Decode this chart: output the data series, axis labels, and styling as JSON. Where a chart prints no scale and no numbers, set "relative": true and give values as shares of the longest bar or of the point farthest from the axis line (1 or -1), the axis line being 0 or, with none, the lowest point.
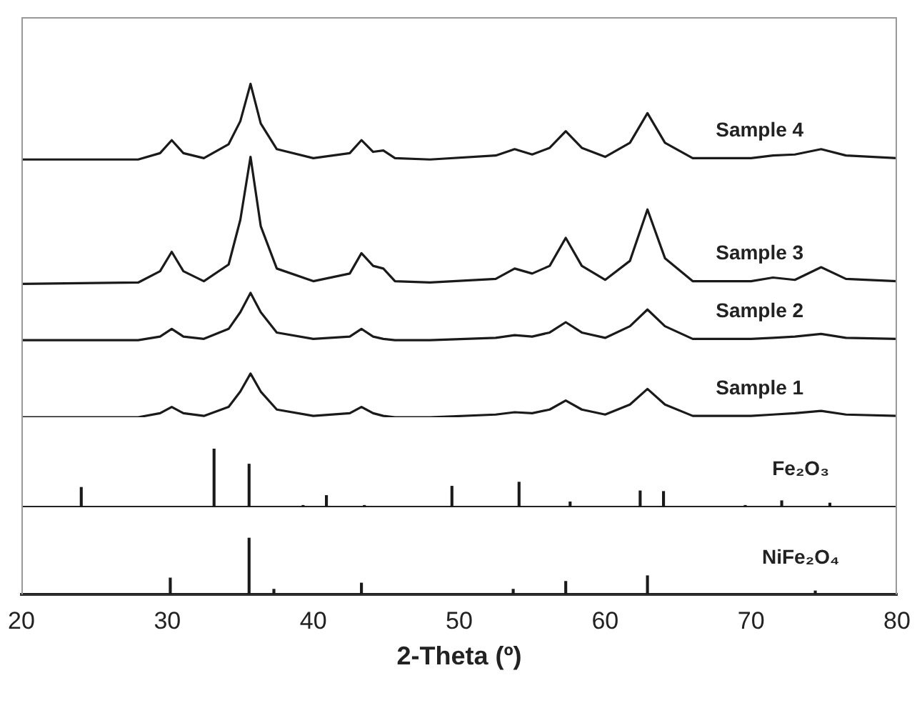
{
  "chart_data": [
    {
      "type": "line",
      "relative": true,
      "tick_labels": false,
      "xlim": [
        20,
        80
      ],
      "x": [
        20,
        28,
        29.5,
        30.3,
        31.1,
        32.5,
        34.2,
        35,
        35.7,
        36.4,
        37.5,
        40,
        42.5,
        43.3,
        44.1,
        44.8,
        45.6,
        48,
        52.5,
        53.8,
        55,
        56.2,
        57.3,
        58.4,
        60,
        61.7,
        62.9,
        64.1,
        66,
        70,
        71.5,
        73,
        74.8,
        76.5,
        80
      ],
      "series": [
        {
          "name": "Sample 4",
          "color": "#1a1a1a",
          "values": [
            0.773,
            0.773,
            0.792,
            0.831,
            0.792,
            0.777,
            0.819,
            0.888,
            1,
            0.881,
            0.804,
            0.777,
            0.792,
            0.831,
            0.796,
            0.8,
            0.777,
            0.773,
            0.785,
            0.804,
            0.788,
            0.808,
            0.858,
            0.808,
            0.781,
            0.823,
            0.912,
            0.823,
            0.777,
            0.777,
            0.785,
            0.788,
            0.804,
            0.785,
            0.777
          ]
        },
        {
          "name": "Sample 3",
          "color": "#1a1a1a",
          "values": [
            0.4,
            0.404,
            0.438,
            0.496,
            0.438,
            0.408,
            0.458,
            0.592,
            0.781,
            0.573,
            0.446,
            0.408,
            0.431,
            0.492,
            0.454,
            0.446,
            0.408,
            0.404,
            0.415,
            0.446,
            0.431,
            0.454,
            0.538,
            0.454,
            0.412,
            0.469,
            0.623,
            0.477,
            0.408,
            0.408,
            0.419,
            0.412,
            0.45,
            0.415,
            0.408
          ]
        },
        {
          "name": "Sample 2",
          "color": "#1a1a1a",
          "values": [
            0.231,
            0.231,
            0.242,
            0.265,
            0.242,
            0.235,
            0.265,
            0.315,
            0.373,
            0.315,
            0.254,
            0.235,
            0.242,
            0.265,
            0.242,
            0.235,
            0.231,
            0.231,
            0.238,
            0.246,
            0.242,
            0.254,
            0.285,
            0.254,
            0.238,
            0.273,
            0.323,
            0.273,
            0.235,
            0.235,
            0.238,
            0.242,
            0.25,
            0.238,
            0.235
          ]
        },
        {
          "name": "Sample 1",
          "color": "#1a1a1a",
          "values": [
            0,
            0,
            0.012,
            0.031,
            0.012,
            0.004,
            0.031,
            0.077,
            0.131,
            0.077,
            0.023,
            0.004,
            0.012,
            0.031,
            0.012,
            0.004,
            0,
            0,
            0.008,
            0.015,
            0.012,
            0.023,
            0.05,
            0.023,
            0.008,
            0.038,
            0.085,
            0.038,
            0.004,
            0.004,
            0.008,
            0.012,
            0.019,
            0.008,
            0.004
          ]
        }
      ]
    },
    {
      "type": "bar",
      "relative": true,
      "tick_labels": false,
      "xlim": [
        20,
        80
      ],
      "x": [
        24.1,
        33.2,
        35.6,
        39.3,
        40.9,
        43.5,
        49.5,
        54.1,
        57.6,
        62.4,
        64,
        69.6,
        72.1,
        75.4
      ],
      "series": [
        {
          "name": "Fe₂O₃",
          "color": "#1a1a1a",
          "values": [
            0.34,
            1,
            0.74,
            0.03,
            0.2,
            0.03,
            0.36,
            0.43,
            0.09,
            0.28,
            0.27,
            0.03,
            0.11,
            0.07
          ]
        }
      ]
    },
    {
      "type": "bar",
      "relative": true,
      "tick_labels": "x",
      "xlim": [
        20,
        80
      ],
      "xticks": [
        20,
        30,
        40,
        50,
        60,
        70,
        80
      ],
      "xlabel": "2-Theta (º)",
      "x": [
        30.2,
        35.6,
        37.3,
        43.3,
        53.7,
        57.3,
        62.9,
        74.4
      ],
      "series": [
        {
          "name": "NiFe₂O₄",
          "color": "#1a1a1a",
          "values": [
            0.29,
            1,
            0.09,
            0.2,
            0.09,
            0.23,
            0.33,
            0.06
          ]
        }
      ]
    }
  ]
}
